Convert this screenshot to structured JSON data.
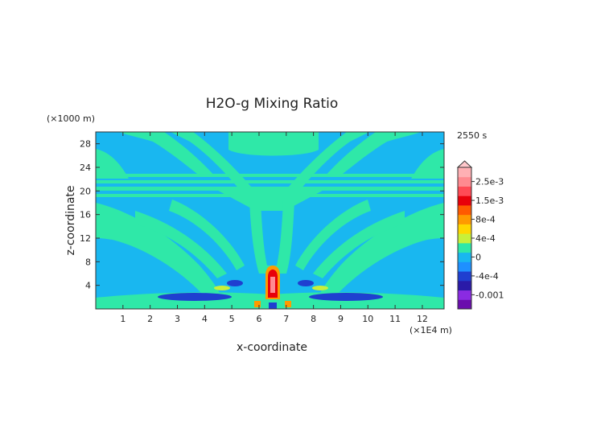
{
  "chart_data": {
    "type": "heatmap",
    "title": "H2O-g Mixing Ratio",
    "time_label": "2550 s",
    "xlabel": "x-coordinate",
    "ylabel": "z-coordinate",
    "x_unit": "(×1E4 m)",
    "y_unit": "(×1000 m)",
    "xlim": [
      0,
      12.8
    ],
    "ylim": [
      0,
      30
    ],
    "x_ticks": [
      1,
      2,
      3,
      4,
      5,
      6,
      7,
      8,
      9,
      10,
      11,
      12
    ],
    "x_tick_labels": [
      "1",
      "2",
      "3",
      "4",
      "5",
      "6",
      "7",
      "8",
      "9",
      "10",
      "11",
      "12"
    ],
    "y_ticks": [
      4,
      8,
      12,
      16,
      20,
      24,
      28
    ],
    "y_tick_labels": [
      "4",
      "8",
      "12",
      "16",
      "20",
      "24",
      "28"
    ],
    "colorbar": {
      "levels": [
        {
          "value": -0.0014,
          "color": "#6a0dad"
        },
        {
          "value": -0.001,
          "color": "#8a2be2"
        },
        {
          "value": -0.0007,
          "color": "#2a1aa8"
        },
        {
          "value": -0.0004,
          "color": "#1f3fd0"
        },
        {
          "value": -0.0002,
          "color": "#1e90ff"
        },
        {
          "value": 0,
          "color": "#19b7f0"
        },
        {
          "value": 0.0002,
          "color": "#2fe8a8"
        },
        {
          "value": 0.0004,
          "color": "#c8f03a"
        },
        {
          "value": 0.0006,
          "color": "#ffd700"
        },
        {
          "value": 0.0008,
          "color": "#ff9a00"
        },
        {
          "value": 0.0011,
          "color": "#ff5a00"
        },
        {
          "value": 0.0015,
          "color": "#e8000a"
        },
        {
          "value": 0.002,
          "color": "#ff4a55"
        },
        {
          "value": 0.0025,
          "color": "#ff8a90"
        },
        {
          "value": 0.003,
          "color": "#ffb0b4"
        }
      ],
      "labels": [
        "2.5e-3",
        "1.5e-3",
        "8e-4",
        "4e-4",
        "0",
        "-4e-4",
        "-0.001"
      ],
      "label_values": [
        0.0025,
        0.0015,
        0.0008,
        0.0004,
        0,
        -0.0004,
        -0.001
      ]
    },
    "field_colors": {
      "background": "#19b7f0",
      "positive": "#2fe8a8",
      "negative": "#1f3fd0",
      "core_outer": "#ff9a00",
      "core_inner": "#e8000a",
      "core_center": "#ff8a90",
      "warm": "#c8f03a"
    }
  }
}
